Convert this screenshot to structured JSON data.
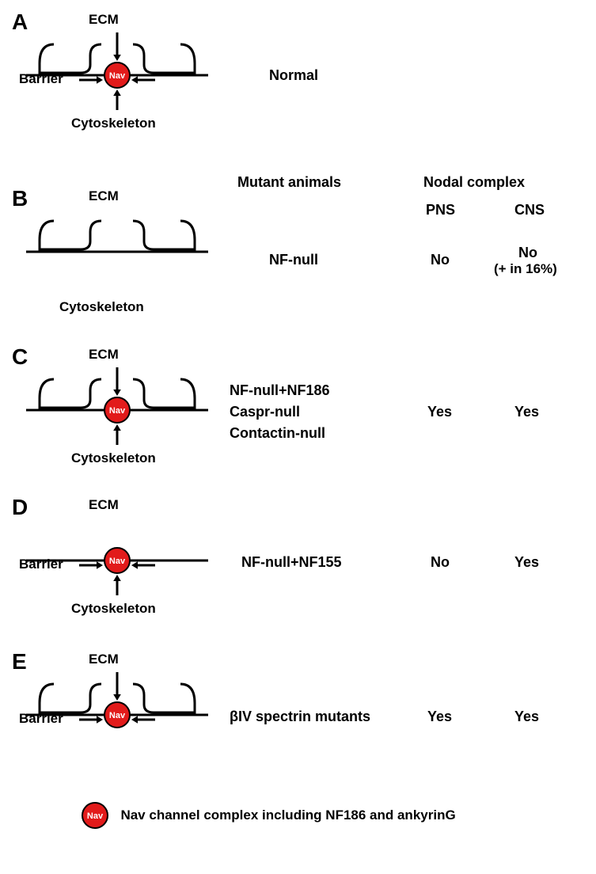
{
  "colors": {
    "nav_fill": "#e21b1b",
    "nav_stroke": "#000000",
    "line": "#000000",
    "bg": "#ffffff"
  },
  "geometry": {
    "axon_width": 230,
    "axon_stroke": 3,
    "glia_width": 78,
    "glia_height": 36,
    "glia_gap": 60,
    "glia_stroke": 3,
    "nav_radius": 16,
    "nav_stroke": 2,
    "arrow_len_h": 30,
    "arrow_len_v": 26,
    "arrow_stroke": 3,
    "arrow_head": 8
  },
  "typography": {
    "panel_letter_size": 28,
    "label_size": 17,
    "header_size": 18,
    "nav_text_size": 11,
    "legend_size": 17
  },
  "panels": {
    "A": {
      "letter": "A",
      "ecm": "ECM",
      "barrier": "Barrier",
      "cytoskeleton": "Cytoskeleton",
      "has_nav": true,
      "has_glia": true,
      "has_barrier_arrows": true,
      "has_ecm_arrow": true,
      "has_cyto_arrow": true,
      "right_label": "Normal"
    },
    "B": {
      "letter": "B",
      "ecm": "ECM",
      "cytoskeleton": "Cytoskeleton",
      "has_nav": false,
      "has_glia": true,
      "has_barrier_arrows": false,
      "has_ecm_arrow": false,
      "has_cyto_arrow": false,
      "right_label": "NF-null"
    },
    "C": {
      "letter": "C",
      "ecm": "ECM",
      "cytoskeleton": "Cytoskeleton",
      "has_nav": true,
      "has_glia": true,
      "has_barrier_arrows": false,
      "has_ecm_arrow": true,
      "has_cyto_arrow": true,
      "right_labels": [
        "NF-null+NF186",
        "Caspr-null",
        "Contactin-null"
      ]
    },
    "D": {
      "letter": "D",
      "ecm": "ECM",
      "cytoskeleton": "Cytoskeleton",
      "has_nav": true,
      "has_glia": false,
      "has_barrier_arrows": true,
      "has_ecm_arrow": false,
      "has_cyto_arrow": true,
      "right_label": "NF-null+NF155"
    },
    "E": {
      "letter": "E",
      "ecm": "ECM",
      "barrier": "Barrier",
      "has_nav": true,
      "has_glia": true,
      "has_barrier_arrows": true,
      "has_ecm_arrow": true,
      "has_cyto_arrow": false,
      "right_label": "βIV spectrin mutants"
    }
  },
  "headers": {
    "mutant": "Mutant animals",
    "nodal": "Nodal complex",
    "pns": "PNS",
    "cns": "CNS"
  },
  "table": {
    "B": {
      "pns": "No",
      "cns": "No",
      "cns_sub": "(+ in 16%)"
    },
    "C": {
      "pns": "Yes",
      "cns": "Yes"
    },
    "D": {
      "pns": "No",
      "cns": "Yes"
    },
    "E": {
      "pns": "Yes",
      "cns": "Yes"
    }
  },
  "legend": {
    "nav_text": "Nav",
    "text": "Nav channel complex including NF186 and ankyrinG"
  }
}
